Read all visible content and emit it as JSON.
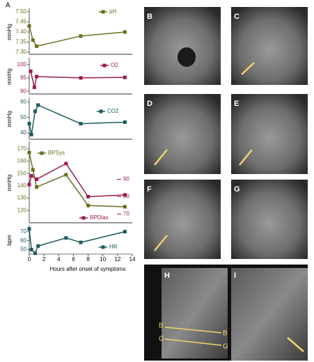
{
  "panel_label": "A",
  "chart_data": [
    {
      "type": "line",
      "ylabel": "mmHg",
      "ylim": [
        7.29,
        7.51
      ],
      "yticks": [
        {
          "value": 7.3,
          "label": "7.30"
        },
        {
          "value": 7.35,
          "label": "7.35"
        },
        {
          "value": 7.4,
          "label": "7.40"
        },
        {
          "value": 7.45,
          "label": "7.45"
        },
        {
          "value": 7.5,
          "label": "7.50"
        }
      ],
      "series": [
        {
          "name": "pH",
          "color": "#6e6e1e",
          "x": [
            0,
            0.5,
            1,
            7,
            13
          ],
          "values": [
            7.43,
            7.36,
            7.33,
            7.38,
            7.4
          ]
        }
      ]
    },
    {
      "type": "line",
      "ylabel": "mmHg",
      "ylim": [
        89,
        102
      ],
      "yticks": [
        90,
        95,
        100
      ],
      "series": [
        {
          "name": "O2",
          "color": "#9b1b4b",
          "x": [
            0.2,
            0.7,
            1,
            7,
            13
          ],
          "values": [
            97.5,
            91.5,
            95.5,
            95,
            95.2
          ]
        }
      ]
    },
    {
      "type": "line",
      "ylabel": "mmHg",
      "ylim": [
        36,
        62
      ],
      "yticks": [
        40,
        50,
        60
      ],
      "series": [
        {
          "name": "CO2",
          "color": "#1c5a60",
          "x": [
            0,
            0.3,
            0.8,
            1.2,
            7,
            13
          ],
          "values": [
            46,
            39,
            54,
            58,
            46,
            47
          ]
        }
      ]
    },
    {
      "type": "line",
      "ylabel": "mmHg",
      "ylim": [
        110,
        175
      ],
      "yticks": [
        120,
        130,
        140,
        150,
        160,
        170
      ],
      "y2lim": [
        65,
        111
      ],
      "y2ticks": [
        70,
        80,
        90
      ],
      "series": [
        {
          "name": "BPSys",
          "color": "#6e6e1e",
          "x": [
            0,
            0.5,
            1,
            5,
            8,
            13
          ],
          "values": [
            167,
            153,
            139,
            149,
            124,
            123
          ]
        },
        {
          "name": "BPDias",
          "color": "#9b1b4b",
          "axis": "y2",
          "x": [
            0,
            0.3,
            1,
            5,
            8,
            13
          ],
          "values": [
            87,
            92,
            90,
            99,
            80,
            81
          ]
        }
      ]
    },
    {
      "type": "line",
      "ylabel": "bpm",
      "ylim": [
        45,
        76
      ],
      "yticks": [
        50,
        60,
        70
      ],
      "xlim": [
        0,
        14
      ],
      "xticks": [
        0,
        2,
        4,
        6,
        8,
        10,
        12,
        14
      ],
      "xlabel": "Hours after onset of symptoms",
      "series": [
        {
          "name": "HR",
          "color": "#1c5a60",
          "x": [
            0,
            0.3,
            0.8,
            1.2,
            5,
            7,
            13
          ],
          "values": [
            73,
            50,
            46,
            54,
            63,
            58,
            70
          ]
        }
      ]
    }
  ],
  "images": {
    "labels": [
      "B",
      "C",
      "D",
      "E",
      "F",
      "G",
      "H",
      "I"
    ],
    "slice_labels": [
      "B",
      "B",
      "G",
      "G"
    ]
  }
}
